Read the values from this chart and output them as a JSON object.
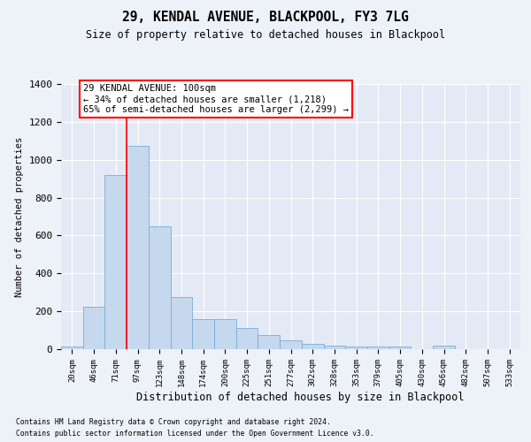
{
  "title1": "29, KENDAL AVENUE, BLACKPOOL, FY3 7LG",
  "title2": "Size of property relative to detached houses in Blackpool",
  "xlabel": "Distribution of detached houses by size in Blackpool",
  "ylabel": "Number of detached properties",
  "categories": [
    "20sqm",
    "46sqm",
    "71sqm",
    "97sqm",
    "123sqm",
    "148sqm",
    "174sqm",
    "200sqm",
    "225sqm",
    "251sqm",
    "277sqm",
    "302sqm",
    "328sqm",
    "353sqm",
    "379sqm",
    "405sqm",
    "430sqm",
    "456sqm",
    "482sqm",
    "507sqm",
    "533sqm"
  ],
  "values": [
    15,
    225,
    920,
    1075,
    650,
    275,
    160,
    160,
    110,
    75,
    45,
    30,
    20,
    15,
    15,
    12,
    0,
    20,
    0,
    0,
    0
  ],
  "bar_color": "#c5d8ee",
  "bar_edgecolor": "#7aadd4",
  "vline_color": "red",
  "vline_pos": 2.5,
  "annotation_title": "29 KENDAL AVENUE: 100sqm",
  "annotation_line1": "← 34% of detached houses are smaller (1,218)",
  "annotation_line2": "65% of semi-detached houses are larger (2,299) →",
  "footer1": "Contains HM Land Registry data © Crown copyright and database right 2024.",
  "footer2": "Contains public sector information licensed under the Open Government Licence v3.0.",
  "ylim": [
    0,
    1400
  ],
  "yticks": [
    0,
    200,
    400,
    600,
    800,
    1000,
    1200,
    1400
  ],
  "background_color": "#edf1f8",
  "plot_background": "#e4eaf5"
}
